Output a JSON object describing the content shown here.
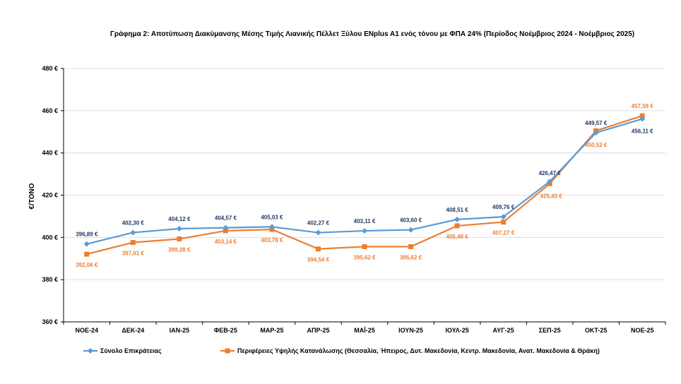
{
  "chart_data": {
    "type": "line",
    "title": "Γράφημα 2: Αποτύπωση Διακύμανσης Μέσης Τιμής Λιανικής Πέλλετ Ξύλου ENplus A1 ενός τόνου με ΦΠΑ 24% (Περίοδος Νοέμβριος 2024 - Νοέμβριος 2025)",
    "ylabel": "€/ΤΟΝΟ",
    "xlabel": "",
    "ylim": [
      360,
      480
    ],
    "yticks": [
      360,
      380,
      400,
      420,
      440,
      460,
      480
    ],
    "ytick_labels": [
      "360 €",
      "380 €",
      "400 €",
      "420 €",
      "440 €",
      "460 €",
      "480 €"
    ],
    "grid": true,
    "legend_position": "bottom",
    "categories": [
      "ΝΟΕ-24",
      "ΔΕΚ-24",
      "ΙΑΝ-25",
      "ΦΕΒ-25",
      "ΜΑΡ-25",
      "ΑΠΡ-25",
      "ΜΑΪ-25",
      "ΙΟΥΝ-25",
      "ΙΟΥΛ-25",
      "ΑΥΓ-25",
      "ΣΕΠ-25",
      "ΟΚΤ-25",
      "ΝΟΕ-25"
    ],
    "series": [
      {
        "name": "Σύνολο Επικράτειας",
        "color": "#5B9BD5",
        "label_color": "#1F3864",
        "marker": "diamond",
        "values": [
          396.89,
          402.3,
          404.12,
          404.57,
          405.03,
          402.27,
          403.11,
          403.6,
          408.51,
          409.76,
          426.47,
          449.57,
          456.11
        ],
        "labels": [
          "396,89 €",
          "402,30 €",
          "404,12 €",
          "404,57 €",
          "405,03 €",
          "402,27 €",
          "403,11 €",
          "403,60 €",
          "408,51 €",
          "409,76 €",
          "426,47 €",
          "449,57 €",
          "456,11 €"
        ]
      },
      {
        "name": "Περιφέρειες Υψηλής Κατανάλωσης (Θεσσαλία, Ήπειρος, Δυτ. Μακεδονία, Κεντρ. Μακεδονία, Ανατ. Μακεδονία & Θράκη)",
        "color": "#ED7D31",
        "label_color": "#ED7D31",
        "marker": "square",
        "values": [
          392.06,
          397.61,
          399.28,
          403.14,
          403.78,
          394.54,
          395.62,
          395.62,
          405.49,
          407.27,
          425.43,
          450.52,
          457.59
        ],
        "labels": [
          "392,06 €",
          "397,61 €",
          "399,28 €",
          "403,14 €",
          "403,78 €",
          "394,54 €",
          "395,62 €",
          "395,62 €",
          "405,49 €",
          "407,27 €",
          "425,43 €",
          "450,52 €",
          "457,59 €"
        ]
      }
    ]
  }
}
